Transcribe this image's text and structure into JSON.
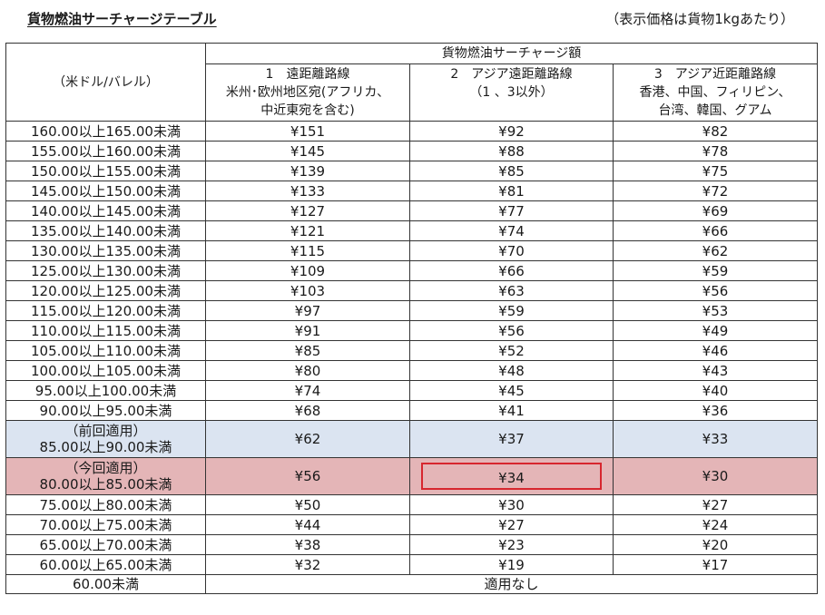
{
  "title": "貨物燃油サーチャージテーブル",
  "note": "（表示価格は貨物1kgあたり）",
  "header": {
    "price_col": "（米ドル/バレル）",
    "group": "貨物燃油サーチャージ額",
    "columns": [
      [
        "1　遠距離路線",
        "米州･欧州地区宛(アフリカ、",
        "中近東宛を含む)"
      ],
      [
        "2　アジア遠距離路線",
        "（1 、3以外）"
      ],
      [
        "3　アジア近距離路線",
        "香港、中国、フィリピン、",
        "台湾、韓国、グアム"
      ]
    ]
  },
  "rows": [
    {
      "range": "160.00以上165.00未満",
      "v": [
        "¥151",
        "¥92",
        "¥82"
      ]
    },
    {
      "range": "155.00以上160.00未満",
      "v": [
        "¥145",
        "¥88",
        "¥78"
      ]
    },
    {
      "range": "150.00以上155.00未満",
      "v": [
        "¥139",
        "¥85",
        "¥75"
      ]
    },
    {
      "range": "145.00以上150.00未満",
      "v": [
        "¥133",
        "¥81",
        "¥72"
      ]
    },
    {
      "range": "140.00以上145.00未満",
      "v": [
        "¥127",
        "¥77",
        "¥69"
      ]
    },
    {
      "range": "135.00以上140.00未満",
      "v": [
        "¥121",
        "¥74",
        "¥66"
      ]
    },
    {
      "range": "130.00以上135.00未満",
      "v": [
        "¥115",
        "¥70",
        "¥62"
      ]
    },
    {
      "range": "125.00以上130.00未満",
      "v": [
        "¥109",
        "¥66",
        "¥59"
      ]
    },
    {
      "range": "120.00以上125.00未満",
      "v": [
        "¥103",
        "¥63",
        "¥56"
      ]
    },
    {
      "range": "115.00以上120.00未満",
      "v": [
        "¥97",
        "¥59",
        "¥53"
      ]
    },
    {
      "range": "110.00以上115.00未満",
      "v": [
        "¥91",
        "¥56",
        "¥49"
      ]
    },
    {
      "range": "105.00以上110.00未満",
      "v": [
        "¥85",
        "¥52",
        "¥46"
      ]
    },
    {
      "range": "100.00以上105.00未満",
      "v": [
        "¥80",
        "¥48",
        "¥43"
      ]
    },
    {
      "range": "95.00以上100.00未満",
      "v": [
        "¥74",
        "¥45",
        "¥40"
      ]
    },
    {
      "range": "90.00以上95.00未満",
      "v": [
        "¥68",
        "¥41",
        "¥36"
      ]
    },
    {
      "tag": "（前回適用）",
      "range": "85.00以上90.00未満",
      "v": [
        "¥62",
        "¥37",
        "¥33"
      ],
      "status": "previous"
    },
    {
      "tag": "（今回適用）",
      "range": "80.00以上85.00未満",
      "v": [
        "¥56",
        "¥34",
        "¥30"
      ],
      "status": "current",
      "highlight_col": 1
    },
    {
      "range": "75.00以上80.00未満",
      "v": [
        "¥50",
        "¥30",
        "¥27"
      ]
    },
    {
      "range": "70.00以上75.00未満",
      "v": [
        "¥44",
        "¥27",
        "¥24"
      ]
    },
    {
      "range": "65.00以上70.00未満",
      "v": [
        "¥38",
        "¥23",
        "¥20"
      ]
    },
    {
      "range": "60.00以上65.00未満",
      "v": [
        "¥32",
        "¥19",
        "¥17"
      ]
    }
  ],
  "last_row": {
    "range": "60.00未満",
    "value": "適用なし"
  },
  "colors": {
    "previous": "#dbe4f1",
    "current": "#e4b5b7",
    "highlight_border": "#d7262e"
  }
}
